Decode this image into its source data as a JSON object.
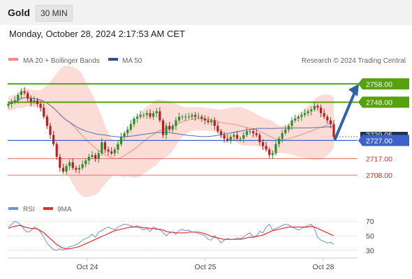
{
  "header": {
    "instrument": "Gold",
    "timeframe": "30 MIN",
    "timestamp": "Monday, October 28, 2024 2:17:53 AM CET"
  },
  "legend": {
    "ma20": "MA 20 + Bollinger Bands",
    "ma50": "MA 50",
    "rsi": "RSI",
    "ma9": "9MA"
  },
  "watermark": "Research © 2024 Trading Central",
  "colors": {
    "up_candle": "#2e8b2e",
    "down_candle": "#b22222",
    "bollinger_fill": "#fbd6d0",
    "ma20": "#e89088",
    "ma50": "#5a6fa8",
    "resistance": "#56a10c",
    "pivot": "#3d63c9",
    "support": "#e07070",
    "arrow": "#2f63a6",
    "rsi": "#6f92d8",
    "rsi_ma": "#e03030"
  },
  "chart_data": {
    "type": "candlestick",
    "symbol": "Gold",
    "interval": "30 MIN",
    "x_ticks": [
      "Oct 24",
      "Oct 25",
      "Oct 28"
    ],
    "ylim": [
      2700,
      2765
    ],
    "close_price": 2729.05,
    "levels": {
      "resistance": [
        2758.0,
        2748.0
      ],
      "pivot": 2727.0,
      "support": [
        2717.0,
        2708.0
      ]
    },
    "level_labels": {
      "r2": "2758.00",
      "r1": "2748.00",
      "current": "2729.05",
      "pivot": "2727.00",
      "s1": "2717.00",
      "s2": "2708.00"
    },
    "close": [
      2747,
      2748,
      2749,
      2752,
      2754,
      2753,
      2750,
      2748,
      2749,
      2747,
      2745,
      2740,
      2735,
      2730,
      2725,
      2718,
      2712,
      2710,
      2713,
      2715,
      2712,
      2711,
      2712,
      2714,
      2716,
      2718,
      2719,
      2717,
      2720,
      2726,
      2722,
      2721,
      2720,
      2722,
      2725,
      2729,
      2731,
      2733,
      2736,
      2739,
      2740,
      2741,
      2741,
      2742,
      2740,
      2742,
      2743,
      2738,
      2730,
      2735,
      2733,
      2735,
      2738,
      2740,
      2740,
      2740,
      2740,
      2741,
      2740,
      2740,
      2739,
      2738,
      2737,
      2738,
      2735,
      2732,
      2730,
      2728,
      2727,
      2729,
      2730,
      2728,
      2728,
      2730,
      2732,
      2732,
      2731,
      2730,
      2726,
      2724,
      2722,
      2719,
      2720,
      2725,
      2728,
      2731,
      2733,
      2735,
      2738,
      2739,
      2740,
      2741,
      2742,
      2743,
      2744,
      2746,
      2745,
      2742,
      2740,
      2738,
      2736,
      2729
    ],
    "rsi": {
      "ticks": [
        70,
        50,
        30
      ],
      "ylim": [
        25,
        75
      ],
      "rsi": [
        62,
        66,
        70,
        68,
        64,
        58,
        55,
        57,
        62,
        60,
        55,
        48,
        40,
        35,
        31,
        30,
        32,
        30,
        32,
        35,
        36,
        38,
        40,
        44,
        46,
        48,
        52,
        48,
        55,
        57,
        60,
        62,
        60,
        58,
        62,
        64,
        66,
        65,
        64,
        62,
        64,
        60,
        58,
        60,
        56,
        62,
        60,
        58,
        55,
        50,
        54,
        55,
        52,
        57,
        59,
        57,
        58,
        55,
        55,
        53,
        52,
        50,
        45,
        44,
        50,
        46,
        40,
        44,
        46,
        45,
        45,
        47,
        46,
        48,
        52,
        54,
        48,
        50,
        56,
        54,
        62,
        66,
        58,
        60,
        62,
        64,
        66,
        65,
        62,
        60,
        58,
        60,
        62,
        64,
        66,
        60,
        48,
        44,
        42,
        40,
        41,
        38
      ],
      "ma": [
        60,
        62,
        63,
        64,
        64,
        62,
        61,
        60,
        60,
        59,
        57,
        54,
        50,
        46,
        42,
        38,
        35,
        33,
        32,
        32,
        33,
        34,
        35,
        37,
        39,
        41,
        43,
        45,
        47,
        49,
        51,
        53,
        55,
        57,
        58,
        59,
        60,
        61,
        62,
        62,
        62,
        62,
        61,
        61,
        60,
        60,
        59,
        59,
        58,
        56,
        55,
        55,
        54,
        54,
        54,
        54,
        55,
        55,
        55,
        55,
        54,
        53,
        51,
        49,
        48,
        47,
        46,
        45,
        45,
        45,
        45,
        45,
        45,
        46,
        47,
        48,
        48,
        49,
        50,
        51,
        53,
        55,
        57,
        58,
        59,
        60,
        61,
        62,
        62,
        62,
        62,
        62,
        62,
        62,
        63,
        62,
        60,
        58,
        56,
        54,
        52,
        50
      ]
    }
  }
}
